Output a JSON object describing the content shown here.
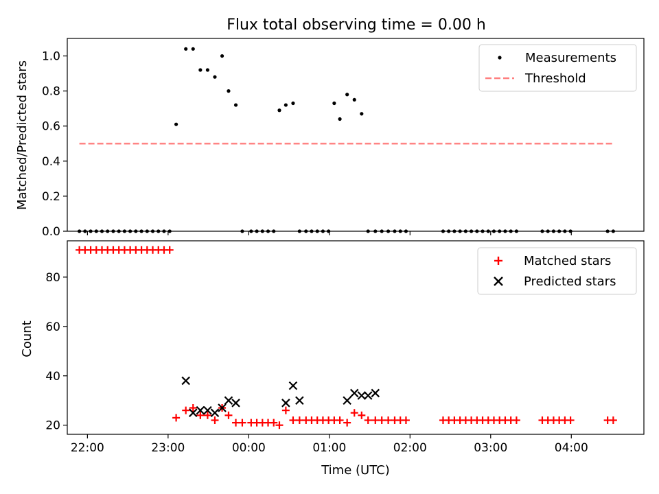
{
  "chart_data": [
    {
      "type": "scatter",
      "title": "Flux total observing time = 0.00 h",
      "xlabel": "",
      "ylabel": "Matched/Predicted stars",
      "x_unit": "hours since 22:00 UTC",
      "xlim": [
        -0.25,
        6.9
      ],
      "ylim": [
        0,
        1.1
      ],
      "yticks": [
        0.0,
        0.2,
        0.4,
        0.6,
        0.8,
        1.0
      ],
      "ytick_labels": [
        "0.0",
        "0.2",
        "0.4",
        "0.6",
        "0.8",
        "1.0"
      ],
      "xticks": [
        0,
        1,
        2,
        3,
        4,
        5,
        6
      ],
      "xtick_labels": [
        "",
        "",
        "",
        "",
        "",
        "",
        ""
      ],
      "legend_position": "top-right",
      "series": [
        {
          "name": "Measurements",
          "marker": "dot",
          "color": "#000000",
          "x": [
            -0.1,
            -0.03,
            0.04,
            0.11,
            0.18,
            0.25,
            0.32,
            0.39,
            0.46,
            0.53,
            0.6,
            0.67,
            0.74,
            0.81,
            0.88,
            0.95,
            1.02,
            1.1,
            1.22,
            1.31,
            1.4,
            1.49,
            1.58,
            1.67,
            1.75,
            1.84,
            1.92,
            2.03,
            2.1,
            2.17,
            2.24,
            2.31,
            2.38,
            2.46,
            2.55,
            2.63,
            2.71,
            2.78,
            2.85,
            2.92,
            2.99,
            3.06,
            3.13,
            3.22,
            3.31,
            3.4,
            3.48,
            3.57,
            3.65,
            3.73,
            3.81,
            3.88,
            3.95,
            4.41,
            4.48,
            4.55,
            4.62,
            4.69,
            4.76,
            4.83,
            4.9,
            4.97,
            5.04,
            5.11,
            5.18,
            5.25,
            5.32,
            5.64,
            5.71,
            5.78,
            5.85,
            5.92,
            5.99,
            6.45,
            6.52
          ],
          "y": [
            0,
            0,
            0,
            0,
            0,
            0,
            0,
            0,
            0,
            0,
            0,
            0,
            0,
            0,
            0,
            0,
            0,
            0.61,
            1.04,
            1.04,
            0.92,
            0.92,
            0.88,
            1.0,
            0.8,
            0.72,
            0,
            0,
            0,
            0,
            0,
            0,
            0.69,
            0.72,
            0.73,
            0,
            0,
            0,
            0,
            0,
            0,
            0.73,
            0.64,
            0.78,
            0.75,
            0.67,
            0,
            0,
            0,
            0,
            0,
            0,
            0,
            0,
            0,
            0,
            0,
            0,
            0,
            0,
            0,
            0,
            0,
            0,
            0,
            0,
            0,
            0,
            0,
            0,
            0,
            0,
            0,
            0,
            0
          ]
        },
        {
          "name": "Threshold",
          "marker": "dashed-line",
          "color": "#ff7f7f",
          "x": [
            -0.1,
            6.52
          ],
          "y": [
            0.5,
            0.5
          ]
        }
      ]
    },
    {
      "type": "scatter",
      "title": "",
      "xlabel": "Time (UTC)",
      "ylabel": "Count",
      "x_unit": "hours since 22:00 UTC",
      "xlim": [
        -0.25,
        6.9
      ],
      "ylim": [
        16.3,
        94.7
      ],
      "yticks": [
        20,
        40,
        60,
        80
      ],
      "ytick_labels": [
        "20",
        "40",
        "60",
        "80"
      ],
      "xticks": [
        0,
        1,
        2,
        3,
        4,
        5,
        6
      ],
      "xtick_labels": [
        "22:00",
        "23:00",
        "00:00",
        "01:00",
        "02:00",
        "03:00",
        "04:00"
      ],
      "legend_position": "top-right",
      "series": [
        {
          "name": "Matched stars",
          "marker": "plus",
          "color": "#ff0000",
          "x": [
            -0.1,
            -0.03,
            0.04,
            0.11,
            0.18,
            0.25,
            0.32,
            0.39,
            0.46,
            0.53,
            0.6,
            0.67,
            0.74,
            0.81,
            0.88,
            0.95,
            1.02,
            1.1,
            1.22,
            1.31,
            1.4,
            1.49,
            1.58,
            1.67,
            1.75,
            1.84,
            1.92,
            2.03,
            2.1,
            2.17,
            2.24,
            2.31,
            2.38,
            2.46,
            2.55,
            2.63,
            2.71,
            2.78,
            2.85,
            2.92,
            2.99,
            3.06,
            3.13,
            3.22,
            3.31,
            3.4,
            3.48,
            3.57,
            3.65,
            3.73,
            3.81,
            3.88,
            3.95,
            4.41,
            4.48,
            4.55,
            4.62,
            4.69,
            4.76,
            4.83,
            4.9,
            4.97,
            5.04,
            5.11,
            5.18,
            5.25,
            5.32,
            5.64,
            5.71,
            5.78,
            5.85,
            5.92,
            5.99,
            6.45,
            6.52
          ],
          "y": [
            91,
            91,
            91,
            91,
            91,
            91,
            91,
            91,
            91,
            91,
            91,
            91,
            91,
            91,
            91,
            91,
            91,
            23,
            26,
            27,
            24,
            24,
            22,
            27,
            24,
            21,
            21,
            21,
            21,
            21,
            21,
            21,
            20,
            26,
            22,
            22,
            22,
            22,
            22,
            22,
            22,
            22,
            22,
            21,
            25,
            24,
            22,
            22,
            22,
            22,
            22,
            22,
            22,
            22,
            22,
            22,
            22,
            22,
            22,
            22,
            22,
            22,
            22,
            22,
            22,
            22,
            22,
            22,
            22,
            22,
            22,
            22,
            22,
            22,
            22
          ]
        },
        {
          "name": "Predicted stars",
          "marker": "x",
          "color": "#000000",
          "x": [
            1.22,
            1.31,
            1.4,
            1.49,
            1.58,
            1.67,
            1.75,
            1.84,
            2.46,
            2.55,
            2.63,
            3.22,
            3.31,
            3.4,
            3.48,
            3.57
          ],
          "y": [
            38,
            25,
            26,
            26,
            25,
            27,
            30,
            29,
            29,
            36,
            30,
            30,
            33,
            32,
            32,
            33
          ]
        }
      ]
    }
  ]
}
